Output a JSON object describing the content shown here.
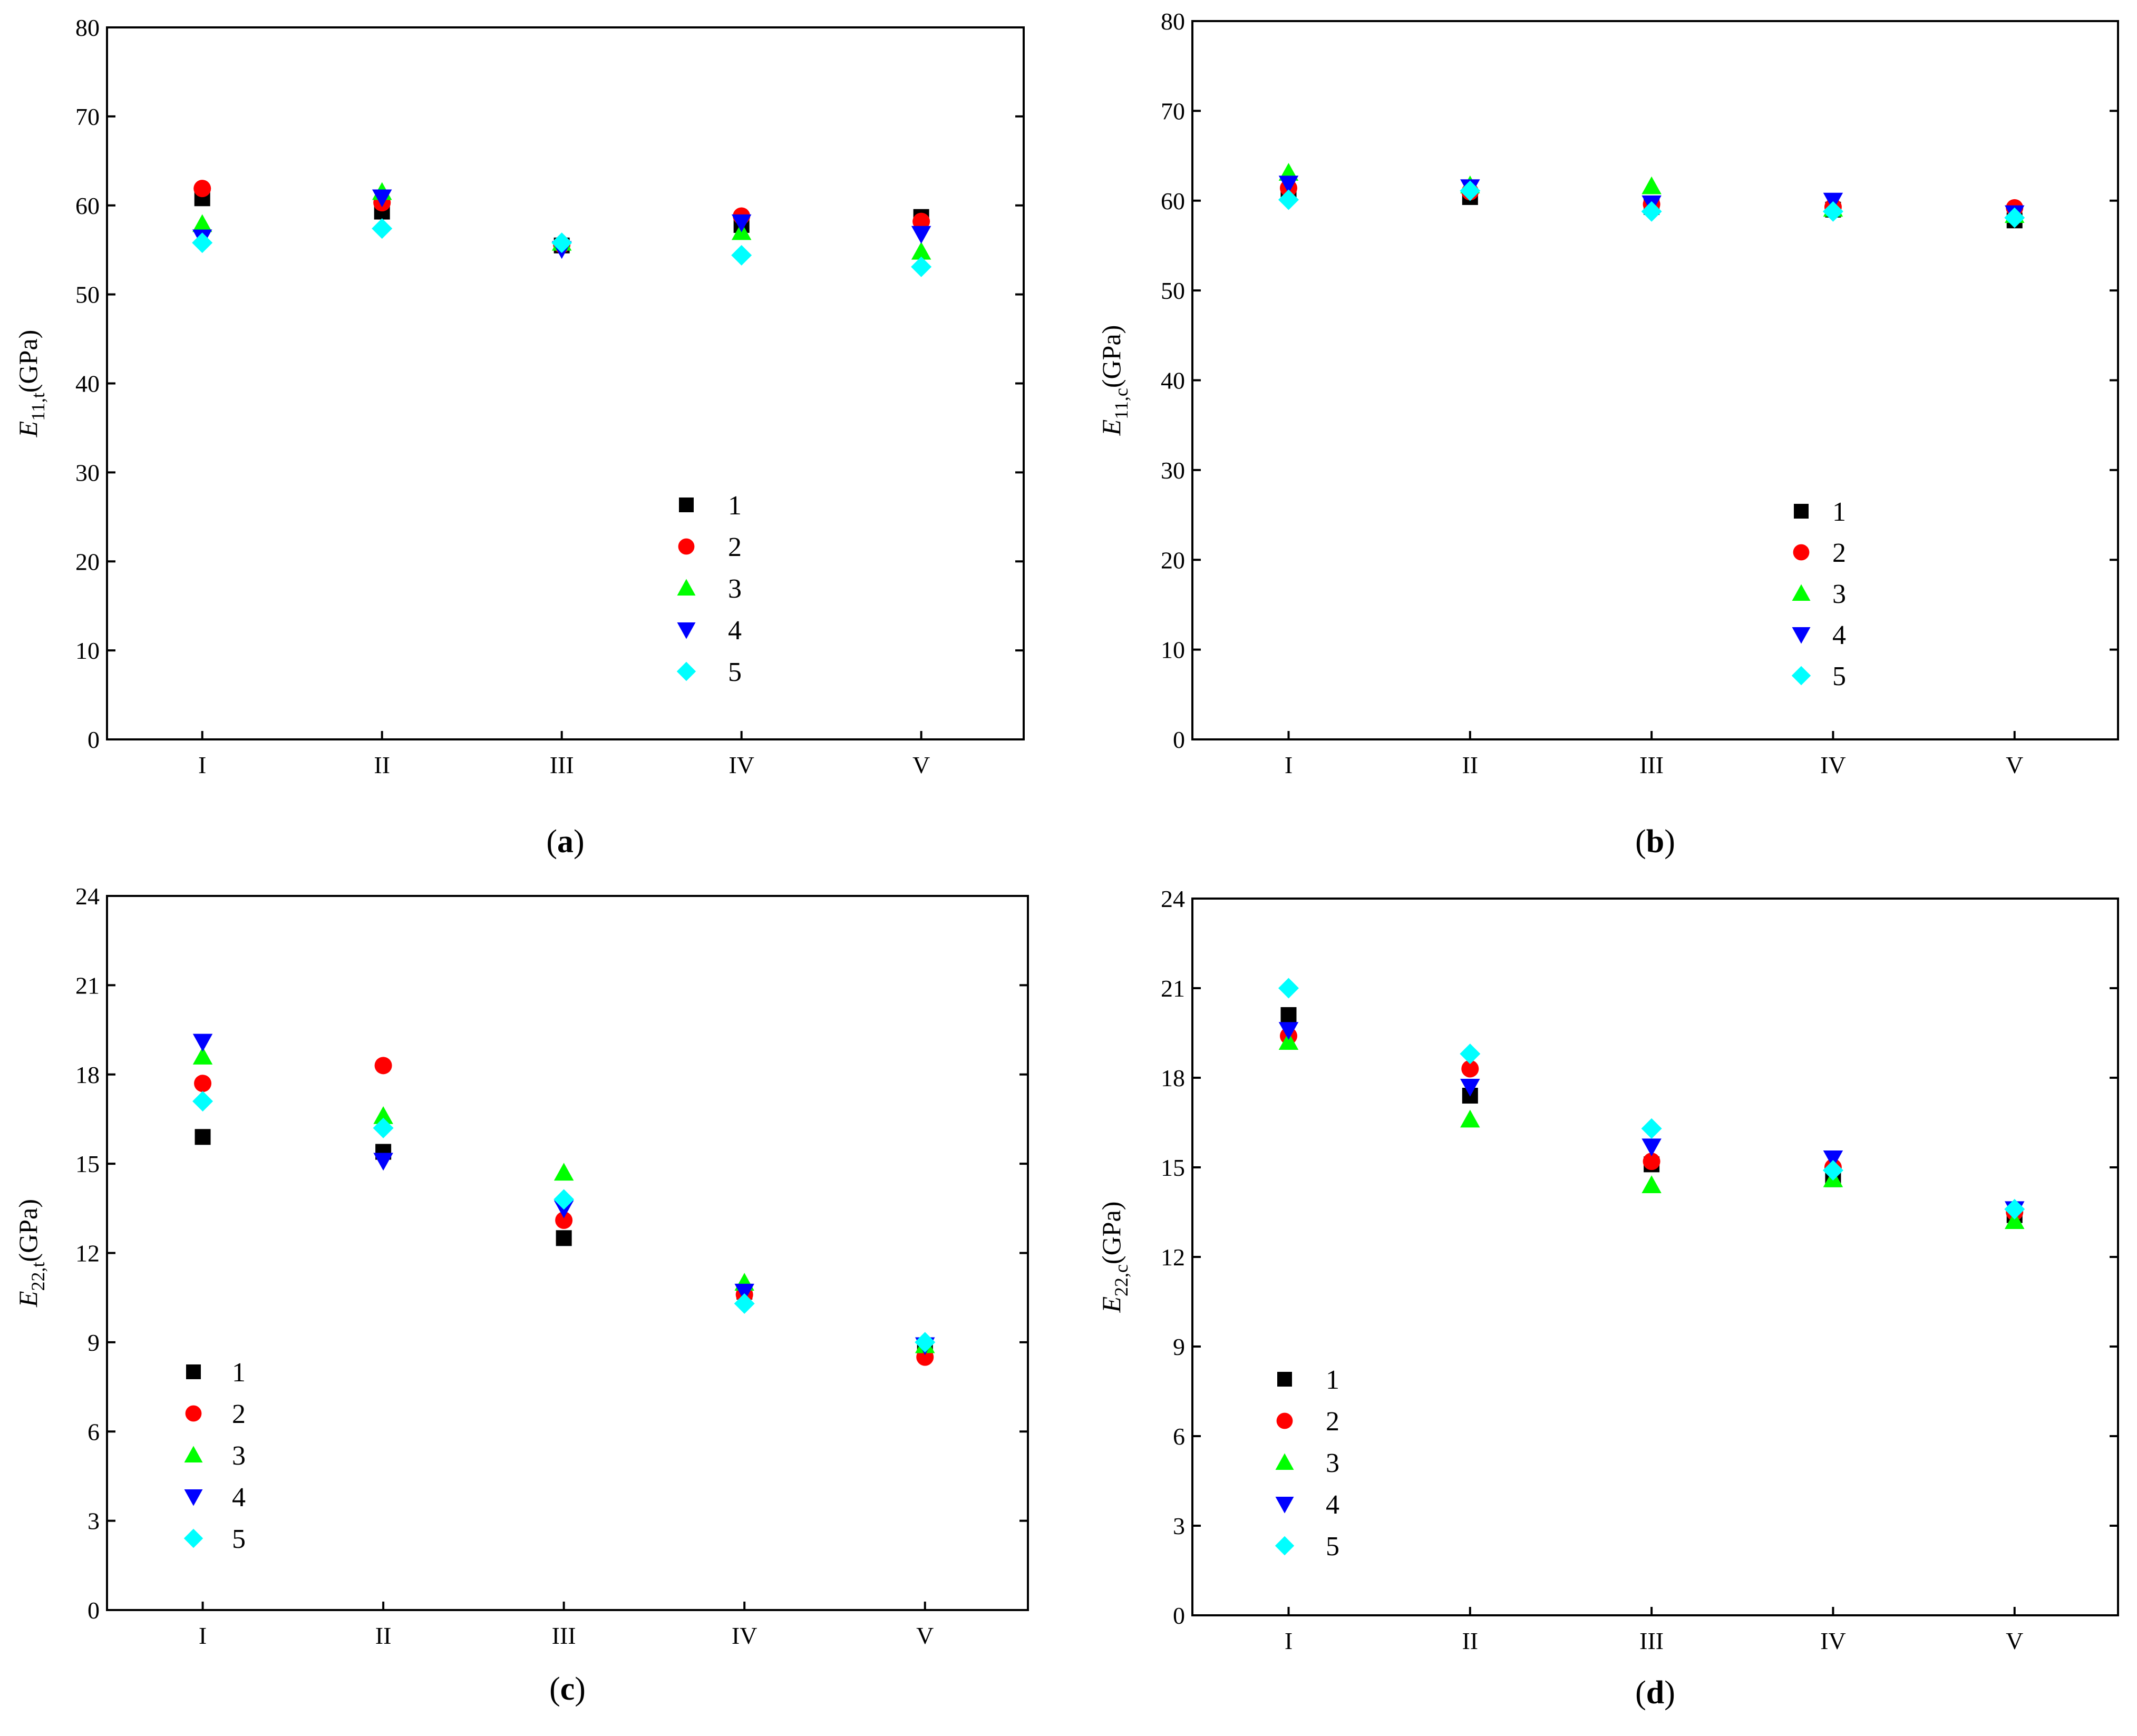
{
  "chart_data": [
    {
      "type": "scatter",
      "panel": "a",
      "caption": {
        "open": "(",
        "letter": "a",
        "close": ")"
      },
      "ylabel": {
        "main": "E",
        "sub": "11,t",
        "unit": "(GPa)"
      },
      "categories": [
        "I",
        "II",
        "III",
        "IV",
        "V"
      ],
      "ylim": [
        0,
        80
      ],
      "yticks": [
        0,
        10,
        20,
        30,
        40,
        50,
        60,
        70,
        80
      ],
      "legend_position": "center-bottom",
      "series": [
        {
          "name": "1",
          "marker": "square",
          "color": "#000000",
          "values": [
            60.8,
            59.3,
            55.5,
            57.8,
            58.7
          ]
        },
        {
          "name": "2",
          "marker": "circle",
          "color": "#ff0000",
          "values": [
            61.9,
            60.3,
            55.6,
            58.8,
            58.2
          ]
        },
        {
          "name": "3",
          "marker": "triangle-up",
          "color": "#00ff00",
          "values": [
            57.9,
            61.5,
            55.8,
            57.0,
            54.8
          ]
        },
        {
          "name": "4",
          "marker": "triangle-down",
          "color": "#0000ff",
          "values": [
            56.4,
            60.9,
            55.1,
            58.1,
            56.8
          ]
        },
        {
          "name": "5",
          "marker": "diamond",
          "color": "#00ffff",
          "values": [
            55.8,
            57.4,
            55.8,
            54.4,
            53.1
          ]
        }
      ]
    },
    {
      "type": "scatter",
      "panel": "b",
      "caption": {
        "open": "(",
        "letter": "b",
        "close": ")"
      },
      "ylabel": {
        "main": "E",
        "sub": "11,c",
        "unit": "(GPa)"
      },
      "categories": [
        "I",
        "II",
        "III",
        "IV",
        "V"
      ],
      "ylim": [
        0,
        80
      ],
      "yticks": [
        0,
        10,
        20,
        30,
        40,
        50,
        60,
        70,
        80
      ],
      "legend_position": "center-bottom",
      "series": [
        {
          "name": "1",
          "marker": "square",
          "color": "#000000",
          "values": [
            60.8,
            60.4,
            59.3,
            59.0,
            57.8
          ]
        },
        {
          "name": "2",
          "marker": "circle",
          "color": "#ff0000",
          "values": [
            61.4,
            61.0,
            59.6,
            59.3,
            59.2
          ]
        },
        {
          "name": "3",
          "marker": "triangle-up",
          "color": "#00ff00",
          "values": [
            63.1,
            61.7,
            61.6,
            59.1,
            58.4
          ]
        },
        {
          "name": "4",
          "marker": "triangle-down",
          "color": "#0000ff",
          "values": [
            61.9,
            61.5,
            59.7,
            60.0,
            58.6
          ]
        },
        {
          "name": "5",
          "marker": "diamond",
          "color": "#00ffff",
          "values": [
            60.1,
            61.1,
            58.8,
            58.8,
            58.1
          ]
        }
      ]
    },
    {
      "type": "scatter",
      "panel": "c",
      "caption": {
        "open": "(",
        "letter": "c",
        "close": ")"
      },
      "ylabel": {
        "main": "E",
        "sub": "22,t",
        "unit": "(GPa)"
      },
      "categories": [
        "I",
        "II",
        "III",
        "IV",
        "V"
      ],
      "ylim": [
        0,
        24
      ],
      "yticks": [
        0,
        3,
        6,
        9,
        12,
        15,
        18,
        21,
        24
      ],
      "legend_position": "left-bottom",
      "series": [
        {
          "name": "1",
          "marker": "square",
          "color": "#000000",
          "values": [
            15.9,
            15.4,
            12.5,
            10.7,
            8.8
          ]
        },
        {
          "name": "2",
          "marker": "circle",
          "color": "#ff0000",
          "values": [
            17.7,
            18.3,
            13.1,
            10.6,
            8.5
          ]
        },
        {
          "name": "3",
          "marker": "triangle-up",
          "color": "#00ff00",
          "values": [
            18.6,
            16.6,
            14.7,
            11.0,
            8.9
          ]
        },
        {
          "name": "4",
          "marker": "triangle-down",
          "color": "#0000ff",
          "values": [
            19.1,
            15.1,
            13.5,
            10.7,
            8.9
          ]
        },
        {
          "name": "5",
          "marker": "diamond",
          "color": "#00ffff",
          "values": [
            17.1,
            16.2,
            13.8,
            10.3,
            9.0
          ]
        }
      ]
    },
    {
      "type": "scatter",
      "panel": "d",
      "caption": {
        "open": "(",
        "letter": "d",
        "close": ")"
      },
      "ylabel": {
        "main": "E",
        "sub": "22,c",
        "unit": "(GPa)"
      },
      "categories": [
        "I",
        "II",
        "III",
        "IV",
        "V"
      ],
      "ylim": [
        0,
        24
      ],
      "yticks": [
        0,
        3,
        6,
        9,
        12,
        15,
        18,
        21,
        24
      ],
      "legend_position": "left-bottom",
      "series": [
        {
          "name": "1",
          "marker": "square",
          "color": "#000000",
          "values": [
            20.1,
            17.4,
            15.1,
            14.6,
            13.4
          ]
        },
        {
          "name": "2",
          "marker": "circle",
          "color": "#ff0000",
          "values": [
            19.4,
            18.3,
            15.2,
            15.0,
            13.5
          ]
        },
        {
          "name": "3",
          "marker": "triangle-up",
          "color": "#00ff00",
          "values": [
            19.2,
            16.6,
            14.4,
            14.6,
            13.2
          ]
        },
        {
          "name": "4",
          "marker": "triangle-down",
          "color": "#0000ff",
          "values": [
            19.6,
            17.7,
            15.7,
            15.3,
            13.6
          ]
        },
        {
          "name": "5",
          "marker": "diamond",
          "color": "#00ffff",
          "values": [
            21.0,
            18.8,
            16.3,
            14.9,
            13.6
          ]
        }
      ]
    }
  ]
}
